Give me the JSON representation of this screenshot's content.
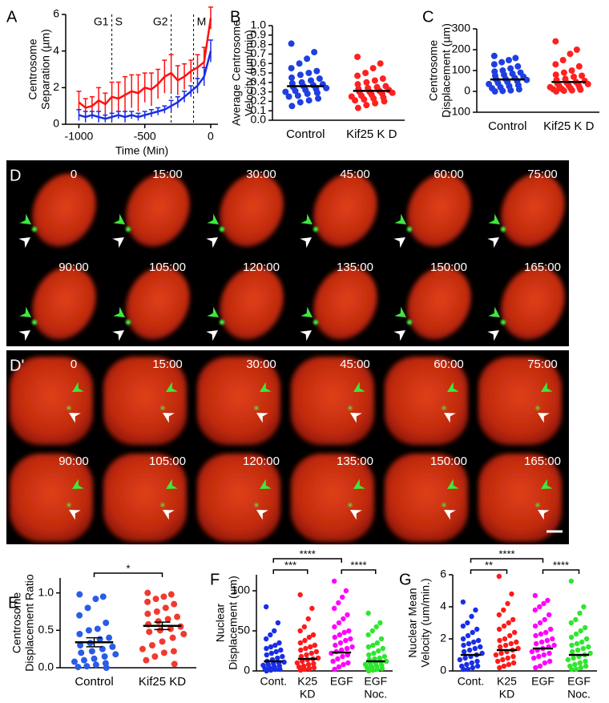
{
  "chart_data": [
    {
      "type": "line",
      "panel": "A",
      "x": [
        -1000,
        -950,
        -900,
        -850,
        -800,
        -750,
        -700,
        -650,
        -600,
        -550,
        -500,
        -450,
        -400,
        -350,
        -300,
        -250,
        -200,
        -150,
        -100,
        -50,
        0
      ],
      "series": [
        {
          "color": "#ff1010",
          "values": [
            1.2,
            0.9,
            1.0,
            1.3,
            1.1,
            1.5,
            1.4,
            1.6,
            1.8,
            1.7,
            2.0,
            1.9,
            2.2,
            2.6,
            2.8,
            2.4,
            2.6,
            2.9,
            3.1,
            3.4,
            5.8
          ],
          "errors": [
            0.6,
            0.5,
            0.5,
            0.7,
            0.6,
            0.8,
            0.9,
            1.0,
            0.9,
            1.0,
            0.8,
            0.9,
            0.8,
            0.9,
            1.0,
            0.8,
            0.7,
            0.6,
            0.7,
            0.8,
            0.6
          ]
        },
        {
          "color": "#1a2ee6",
          "values": [
            0.5,
            0.4,
            0.5,
            0.4,
            0.3,
            0.4,
            0.5,
            0.4,
            0.5,
            0.4,
            0.5,
            0.6,
            0.7,
            0.8,
            1.0,
            1.2,
            1.5,
            1.8,
            2.1,
            2.6,
            4.0
          ],
          "errors": [
            0.3,
            0.3,
            0.2,
            0.3,
            0.2,
            0.2,
            0.2,
            0.3,
            0.2,
            0.2,
            0.2,
            0.2,
            0.2,
            0.2,
            0.3,
            0.3,
            0.3,
            0.3,
            0.4,
            0.5,
            0.6
          ]
        }
      ],
      "xlim": [
        -1100,
        55
      ],
      "xticks": [
        -1000,
        -500,
        0
      ],
      "ylim": [
        0,
        6
      ],
      "yticks": [
        0,
        2,
        4,
        6
      ],
      "xlabel": "Time (Min)",
      "ylabel": [
        "Centrosome",
        "Separation (µm)"
      ],
      "markers": [
        {
          "x": -750,
          "left": "G1",
          "right": "S"
        },
        {
          "x": -300,
          "left": "G2"
        },
        {
          "x": -130,
          "right": "M"
        }
      ]
    },
    {
      "type": "dot",
      "panel": "B",
      "categories": [
        "Control",
        "Kif25 K D"
      ],
      "colors": [
        "#1f3fe0",
        "#ff2020"
      ],
      "points": [
        [
          0.81,
          0.72,
          0.65,
          0.6,
          0.55,
          0.52,
          0.5,
          0.48,
          0.45,
          0.44,
          0.42,
          0.4,
          0.39,
          0.38,
          0.37,
          0.36,
          0.35,
          0.34,
          0.33,
          0.32,
          0.31,
          0.3,
          0.29,
          0.28,
          0.26,
          0.25,
          0.23,
          0.21,
          0.19,
          0.15
        ],
        [
          0.67,
          0.6,
          0.55,
          0.5,
          0.47,
          0.44,
          0.42,
          0.4,
          0.38,
          0.36,
          0.35,
          0.34,
          0.33,
          0.32,
          0.31,
          0.3,
          0.3,
          0.29,
          0.28,
          0.27,
          0.26,
          0.25,
          0.24,
          0.23,
          0.22,
          0.21,
          0.2,
          0.18,
          0.16,
          0.13
        ]
      ],
      "means": [
        0.36,
        0.31
      ],
      "ylim": [
        0,
        1
      ],
      "yticks": [
        {
          "value": 0,
          "label": "0.0"
        },
        0.1,
        0.2,
        0.3,
        0.4,
        0.5,
        0.6,
        0.7,
        0.8,
        0.9,
        {
          "value": 1,
          "label": "1.0"
        }
      ],
      "ylabel": [
        "Average Centrosome",
        "Velocity (µm/min)"
      ]
    },
    {
      "type": "dot",
      "panel": "C",
      "categories": [
        "Control",
        "Kif25 K D"
      ],
      "colors": [
        "#1f3fe0",
        "#ff2020"
      ],
      "points": [
        [
          170,
          160,
          150,
          140,
          130,
          120,
          110,
          100,
          95,
          90,
          85,
          80,
          75,
          70,
          65,
          60,
          58,
          55,
          50,
          45,
          40,
          35,
          30,
          25,
          20,
          15,
          10,
          5,
          2,
          0
        ],
        [
          240,
          200,
          180,
          150,
          130,
          120,
          100,
          90,
          80,
          75,
          70,
          60,
          55,
          50,
          45,
          40,
          38,
          35,
          30,
          28,
          25,
          20,
          18,
          15,
          12,
          10,
          8,
          5,
          3,
          0
        ]
      ],
      "means": [
        57,
        45
      ],
      "ylim": [
        -100,
        300
      ],
      "yticks": [
        -100,
        0,
        100,
        200,
        300
      ],
      "ylabel": [
        "Centrosome",
        "Displacement (µm)"
      ]
    },
    {
      "type": "dot",
      "panel": "E",
      "categories": [
        "Control",
        "Kif25 KD"
      ],
      "colors": [
        "#2a5ce8",
        "#f03a30"
      ],
      "points": [
        [
          0.98,
          0.95,
          0.92,
          0.8,
          0.7,
          0.6,
          0.52,
          0.5,
          0.45,
          0.4,
          0.38,
          0.33,
          0.3,
          0.28,
          0.25,
          0.22,
          0.2,
          0.18,
          0.15,
          0.12,
          0.1,
          0.08,
          0.06,
          0.04,
          0.02,
          0.01,
          0.0
        ],
        [
          1.0,
          0.98,
          0.95,
          0.92,
          0.88,
          0.85,
          0.8,
          0.75,
          0.72,
          0.68,
          0.65,
          0.62,
          0.58,
          0.55,
          0.52,
          0.5,
          0.48,
          0.45,
          0.4,
          0.35,
          0.3,
          0.25,
          0.22,
          0.2,
          0.15,
          0.1,
          0.05
        ]
      ],
      "means": [
        0.34,
        0.56
      ],
      "sem": [
        0.06,
        0.05
      ],
      "ylim": [
        0,
        1.2
      ],
      "yticks": [
        {
          "value": 0,
          "label": "0.0"
        },
        0.5,
        {
          "value": 1,
          "label": "1.0"
        }
      ],
      "ylabel": [
        "Centrosome",
        "Displacement Ratio"
      ],
      "significance": [
        {
          "from": 0,
          "to": 1,
          "label": "*"
        }
      ]
    },
    {
      "type": "dot",
      "panel": "F",
      "categories": [
        [
          "Cont."
        ],
        [
          "K25",
          "KD"
        ],
        [
          "EGF"
        ],
        [
          "EGF",
          "Noc."
        ]
      ],
      "colors": [
        "#1a2ee6",
        "#ff1a1a",
        "#ff00ff",
        "#2ee62e"
      ],
      "points": [
        [
          80,
          60,
          50,
          45,
          40,
          35,
          32,
          30,
          28,
          26,
          24,
          22,
          20,
          18,
          16,
          14,
          12,
          11,
          10,
          9,
          8,
          7,
          6,
          5,
          4,
          3,
          2,
          2,
          1,
          0
        ],
        [
          95,
          78,
          65,
          55,
          50,
          45,
          42,
          38,
          35,
          32,
          30,
          28,
          26,
          24,
          22,
          20,
          18,
          16,
          15,
          14,
          12,
          10,
          9,
          8,
          6,
          5,
          4,
          3,
          2,
          1
        ],
        [
          112,
          100,
          92,
          85,
          78,
          70,
          65,
          60,
          55,
          50,
          48,
          45,
          42,
          40,
          38,
          35,
          32,
          30,
          28,
          26,
          24,
          22,
          20,
          18,
          15,
          12,
          10,
          8,
          5,
          2
        ],
        [
          72,
          60,
          55,
          50,
          45,
          40,
          35,
          32,
          30,
          28,
          25,
          22,
          20,
          18,
          16,
          15,
          14,
          12,
          11,
          10,
          9,
          8,
          7,
          6,
          5,
          4,
          3,
          2,
          1,
          0
        ]
      ],
      "means": [
        12,
        15,
        23,
        12
      ],
      "ylim": [
        0,
        120
      ],
      "yticks": [
        0,
        50,
        100
      ],
      "ylabel": [
        "Nuclear",
        "Displacement (um)"
      ],
      "significance": [
        {
          "from": 0,
          "to": 1,
          "label": "***"
        },
        {
          "from": 0,
          "to": 2,
          "label": "****"
        },
        {
          "from": 2,
          "to": 3,
          "label": "****"
        }
      ]
    },
    {
      "type": "dot",
      "panel": "G",
      "categories": [
        [
          "Cont."
        ],
        [
          "K25",
          "KD"
        ],
        [
          "EGF"
        ],
        [
          "EGF",
          "Noc."
        ]
      ],
      "colors": [
        "#1a2ee6",
        "#ff1a1a",
        "#ff00ff",
        "#2ee62e"
      ],
      "points": [
        [
          4.3,
          3.8,
          3.4,
          3.0,
          2.8,
          2.6,
          2.4,
          2.2,
          2.0,
          1.9,
          1.8,
          1.7,
          1.6,
          1.5,
          1.4,
          1.3,
          1.2,
          1.1,
          1.0,
          0.9,
          0.8,
          0.7,
          0.6,
          0.5,
          0.4,
          0.3,
          0.3,
          0.2,
          0.1,
          0.1
        ],
        [
          5.9,
          4.8,
          4.2,
          3.8,
          3.5,
          3.2,
          3.0,
          2.8,
          2.6,
          2.4,
          2.2,
          2.0,
          1.9,
          1.8,
          1.7,
          1.6,
          1.5,
          1.4,
          1.3,
          1.2,
          1.1,
          1.0,
          0.9,
          0.8,
          0.7,
          0.6,
          0.5,
          0.4,
          0.3,
          0.2
        ],
        [
          4.7,
          4.4,
          4.2,
          4.0,
          3.8,
          3.5,
          3.2,
          3.0,
          2.8,
          2.6,
          2.4,
          2.3,
          2.2,
          2.0,
          1.9,
          1.8,
          1.7,
          1.6,
          1.5,
          1.4,
          1.3,
          1.2,
          1.1,
          1.0,
          0.9,
          0.8,
          0.6,
          0.5,
          0.3,
          0.2
        ],
        [
          5.6,
          4.0,
          3.6,
          3.2,
          3.0,
          2.7,
          2.5,
          2.3,
          2.1,
          2.0,
          1.8,
          1.7,
          1.6,
          1.5,
          1.4,
          1.3,
          1.2,
          1.1,
          1.0,
          0.9,
          0.8,
          0.7,
          0.6,
          0.5,
          0.4,
          0.3,
          0.3,
          0.2,
          0.1,
          0.1
        ]
      ],
      "means": [
        1.0,
        1.3,
        1.4,
        1.0
      ],
      "ylim": [
        0,
        6
      ],
      "yticks": [
        0,
        2,
        4,
        6
      ],
      "ylabel": [
        "Nuclear Mean",
        "Velocity (um/min.)"
      ],
      "significance": [
        {
          "from": 0,
          "to": 1,
          "label": "**"
        },
        {
          "from": 0,
          "to": 2,
          "label": "****"
        },
        {
          "from": 2,
          "to": 3,
          "label": "****"
        }
      ]
    }
  ],
  "image_panels": [
    {
      "label": "D",
      "timestamps": [
        "0",
        "15:00",
        "30:00",
        "45:00",
        "60:00",
        "75:00",
        "90:00",
        "105:00",
        "120:00",
        "135:00",
        "150:00",
        "165:00"
      ]
    },
    {
      "label": "D'",
      "timestamps": [
        "0",
        "15:00",
        "30:00",
        "45:00",
        "60:00",
        "75:00",
        "90:00",
        "105:00",
        "120:00",
        "135:00",
        "150:00",
        "165:00"
      ]
    }
  ]
}
